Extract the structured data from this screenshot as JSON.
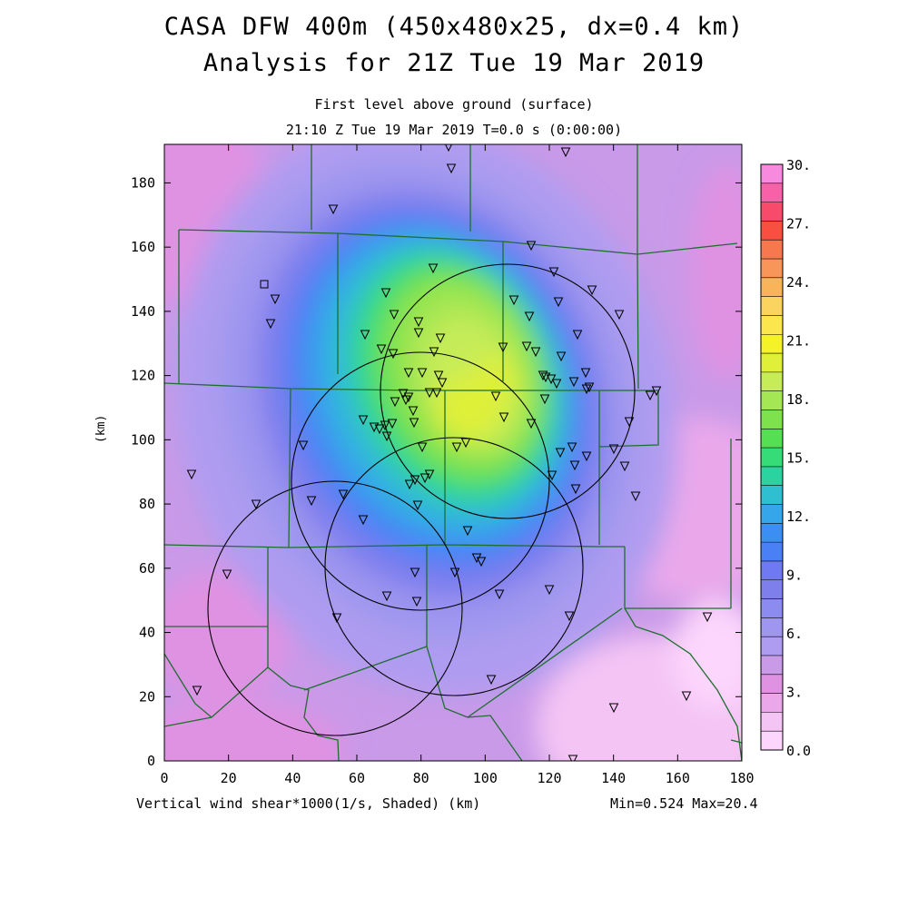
{
  "header": {
    "title": "CASA DFW 400m (450x480x25, dx=0.4 km)",
    "subtitle": "Analysis for 21Z Tue 19 Mar 2019",
    "level": "First level above ground (surface)",
    "time": "21:10 Z Tue 19 Mar 2019    T=0.0 s (0:00:00)"
  },
  "footer": {
    "field": "Vertical wind shear*1000(1/s, Shaded)  (km)",
    "minmax": "Min=0.524 Max=20.4"
  },
  "axes": {
    "ylabel": "(km)",
    "xlim": [
      0,
      180
    ],
    "ylim": [
      0,
      192
    ],
    "xticks": [
      "0",
      "20",
      "40",
      "60",
      "80",
      "100",
      "120",
      "140",
      "160",
      "180"
    ],
    "yticks": [
      "0",
      "20",
      "40",
      "60",
      "80",
      "100",
      "120",
      "140",
      "160",
      "180"
    ]
  },
  "colorbar": {
    "labels": [
      "0.0",
      "3.",
      "6.",
      "9.",
      "12.",
      "15.",
      "18.",
      "21.",
      "24.",
      "27.",
      "30."
    ],
    "colors": [
      "#fcd6fc",
      "#f4c4f4",
      "#eaa8ea",
      "#e092e2",
      "#c89ae8",
      "#ae9cf0",
      "#9e96ef",
      "#8b8bf0",
      "#7e7eed",
      "#6f79f2",
      "#4a80f6",
      "#3b8ef2",
      "#35a6ea",
      "#2ec0d0",
      "#2bd3a0",
      "#36dc78",
      "#55e054",
      "#7ee24c",
      "#a4e653",
      "#c6ec58",
      "#e0f038",
      "#f6f228",
      "#fbe64d",
      "#fbd35f",
      "#f9b45a",
      "#f8965a",
      "#f7784e",
      "#f84f40",
      "#f84a6a",
      "#f861a8",
      "#f78ade"
    ]
  },
  "chart_data": {
    "type": "heatmap",
    "field": "Vertical wind shear*1000 (1/s)",
    "x_units": "km",
    "y_units": "km",
    "min": 0.524,
    "max": 20.4,
    "peak_region": {
      "x": [
        80,
        115
      ],
      "y": [
        85,
        125
      ]
    },
    "radar_range_rings": [
      {
        "center_km": [
          107,
          116
        ],
        "radius_km": 39
      },
      {
        "center_km": [
          80,
          87
        ],
        "radius_km": 40
      },
      {
        "center_km": [
          91,
          61
        ],
        "radius_km": 40
      },
      {
        "center_km": [
          53,
          48
        ],
        "radius_km": 40
      }
    ],
    "station_marker": "inverted triangle"
  }
}
